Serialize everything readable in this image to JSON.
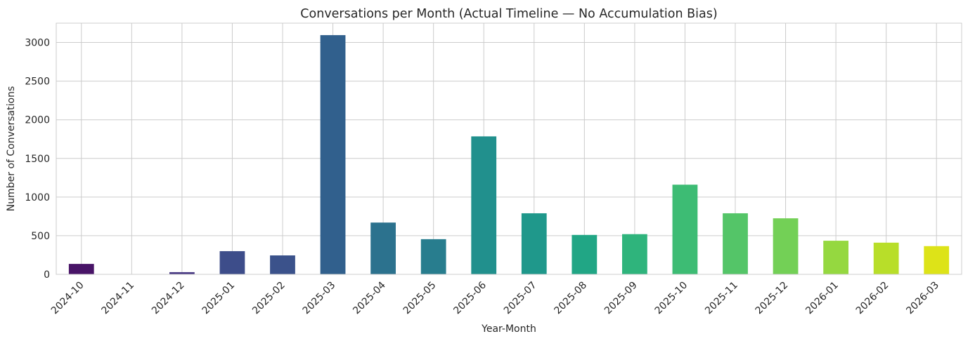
{
  "chart_data": {
    "type": "bar",
    "title": "Conversations per Month (Actual Timeline — No Accumulation Bias)",
    "xlabel": "Year-Month",
    "ylabel": "Number of Conversations",
    "ylim": [
      0,
      3250
    ],
    "yticks": [
      0,
      500,
      1000,
      1500,
      2000,
      2500,
      3000
    ],
    "grid": true,
    "categories": [
      "2024-10",
      "2024-11",
      "2024-12",
      "2025-01",
      "2025-02",
      "2025-03",
      "2025-04",
      "2025-05",
      "2025-06",
      "2025-07",
      "2025-08",
      "2025-09",
      "2025-10",
      "2025-11",
      "2025-12",
      "2026-01",
      "2026-02",
      "2026-03"
    ],
    "values": [
      135,
      3,
      28,
      300,
      245,
      3095,
      670,
      455,
      1785,
      790,
      510,
      520,
      1160,
      790,
      725,
      435,
      410,
      365
    ],
    "colors": [
      "#481467",
      "#482576",
      "#453581",
      "#3d4d8a",
      "#3b528b",
      "#31608d",
      "#2c728e",
      "#287d8e",
      "#21908d",
      "#1f988b",
      "#21a685",
      "#2fb47c",
      "#3dbc74",
      "#54c568",
      "#73d056",
      "#95d840",
      "#b8de29",
      "#dde318"
    ]
  }
}
